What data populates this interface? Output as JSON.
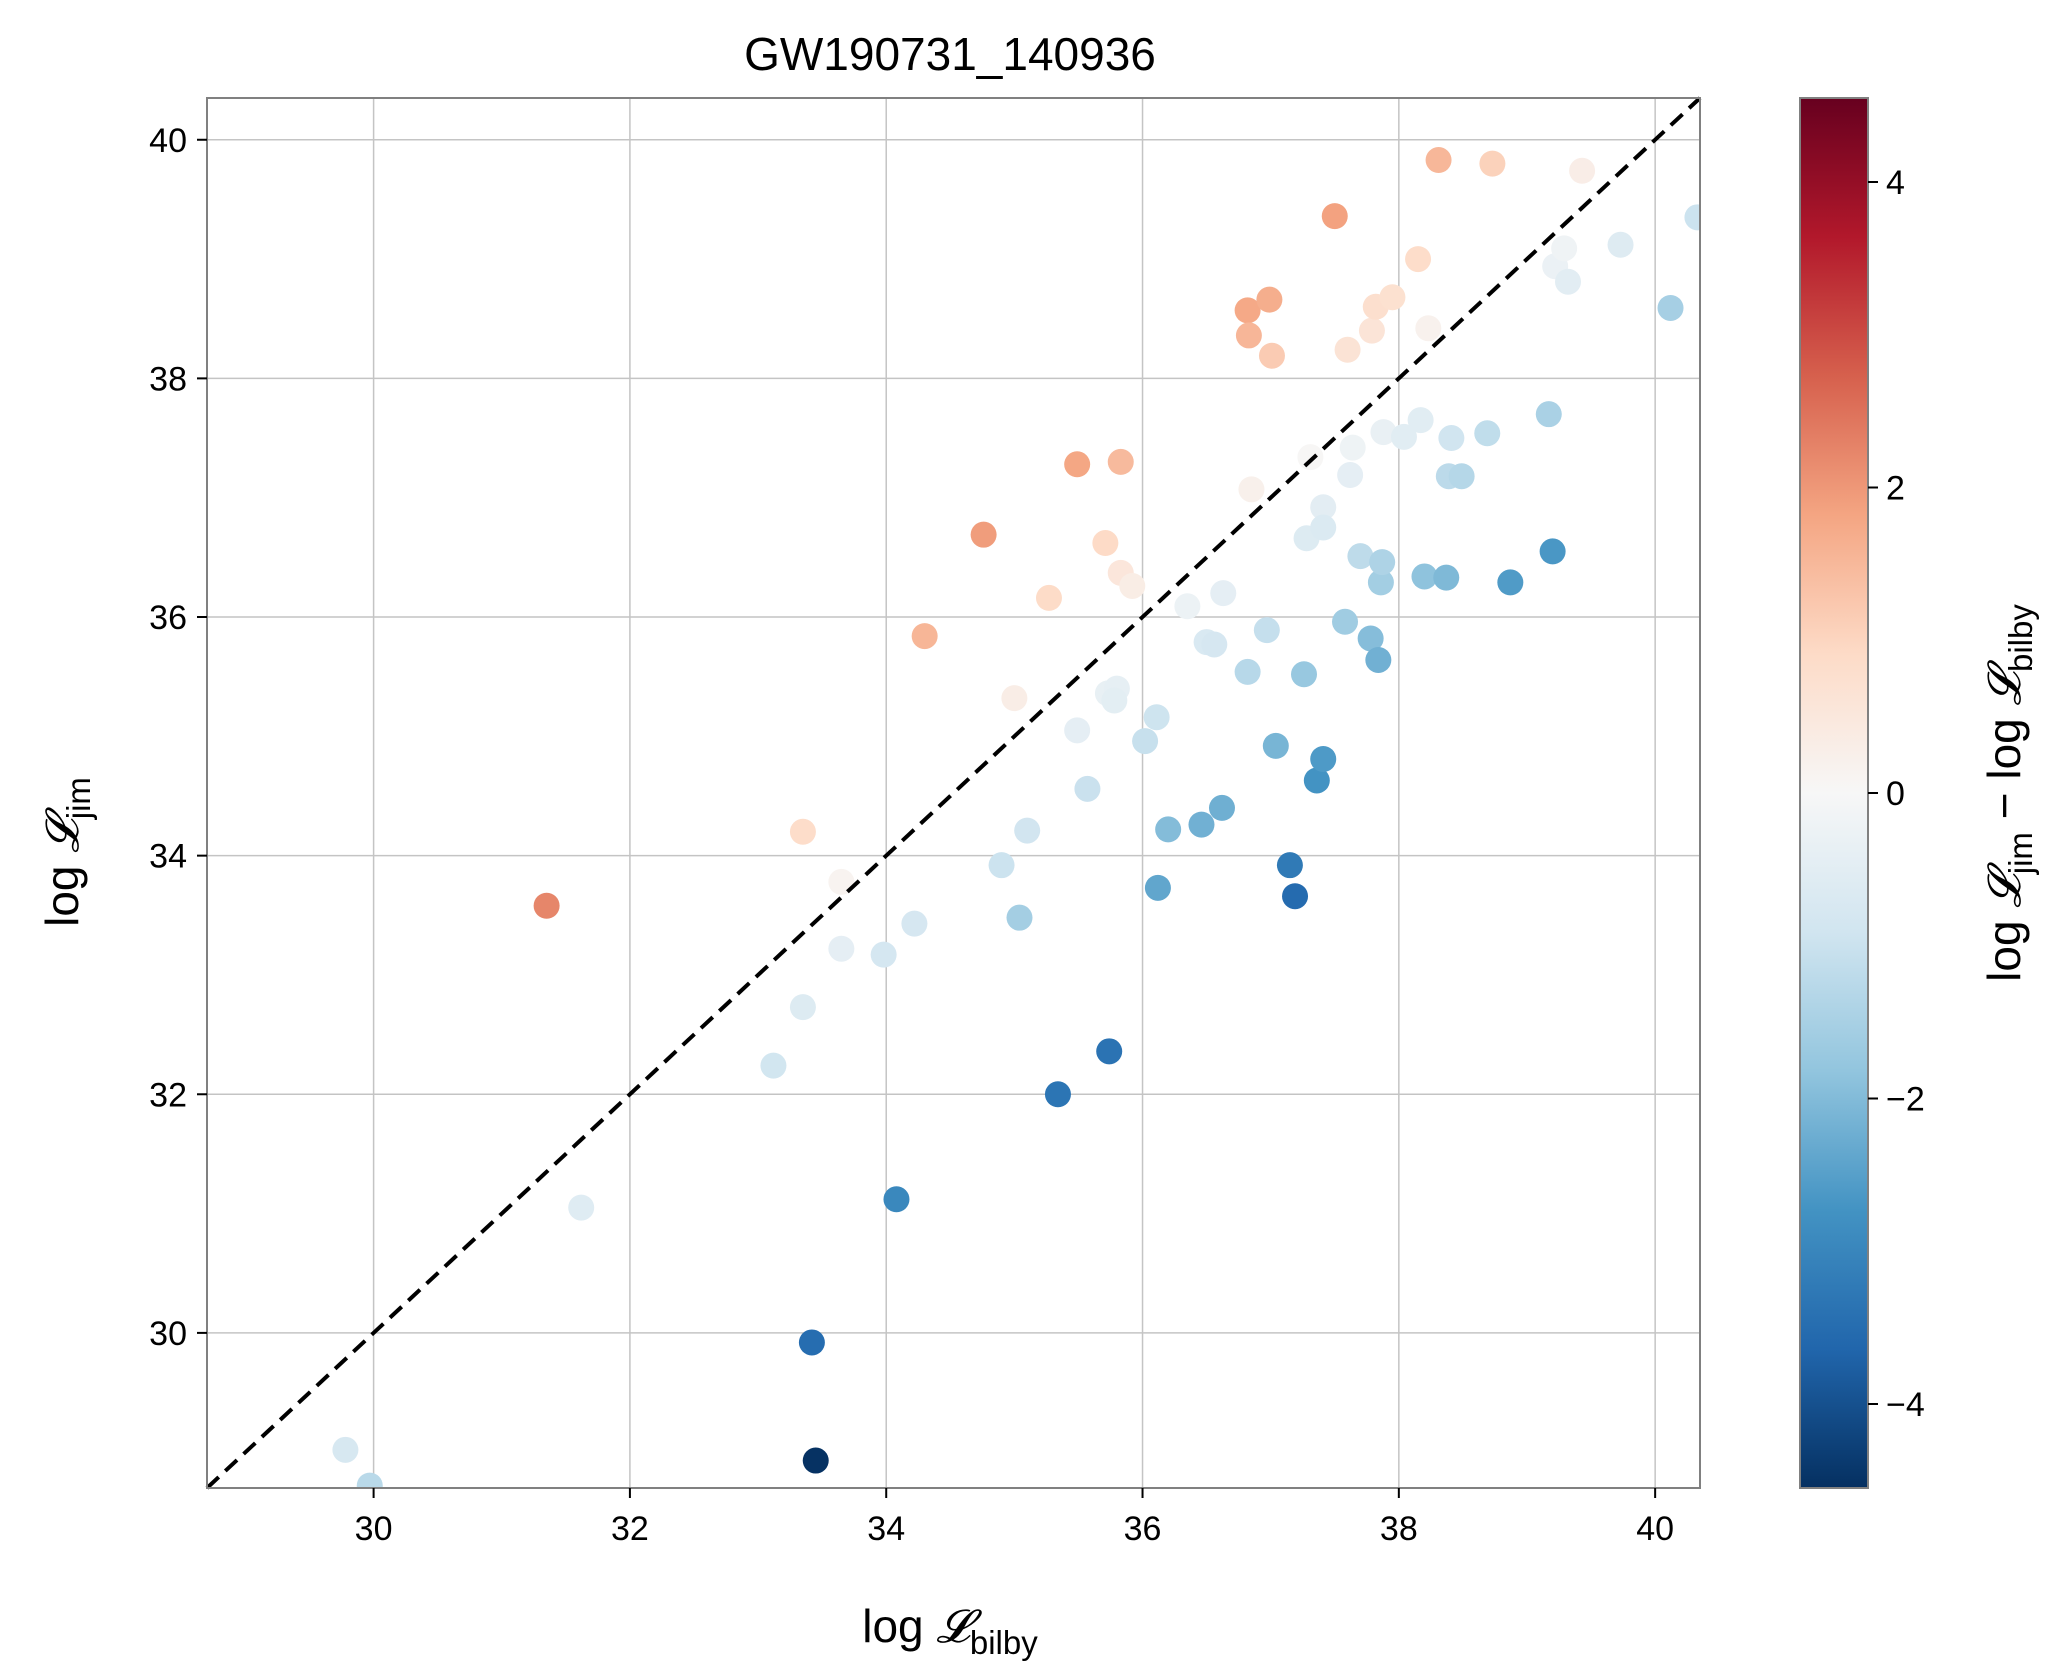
{
  "chart_data": {
    "type": "scatter",
    "title": "GW190731_140936",
    "xlabel": {
      "prefix": "log ",
      "symbol": "𝓛",
      "subscript": "bilby"
    },
    "ylabel": {
      "prefix": "log ",
      "symbol": "𝓛",
      "subscript": "jim"
    },
    "colorbar_label": {
      "a_prefix": "log ",
      "a_symbol": "𝓛",
      "a_subscript": "jim",
      "minus": " − ",
      "b_prefix": "log ",
      "b_symbol": "𝓛",
      "b_subscript": "bilby"
    },
    "xlim": [
      28.7,
      40.35
    ],
    "ylim": [
      28.7,
      40.35
    ],
    "xticks": [
      30,
      32,
      34,
      36,
      38,
      40
    ],
    "yticks": [
      30,
      32,
      34,
      36,
      38,
      40
    ],
    "xtick_labels": [
      "30",
      "32",
      "34",
      "36",
      "38",
      "40"
    ],
    "ytick_labels": [
      "30",
      "32",
      "34",
      "36",
      "38",
      "40"
    ],
    "grid": true,
    "colormap": "RdBu_r",
    "colorbar_range": [
      -4.55,
      4.55
    ],
    "colorbar_ticks": [
      -4,
      -2,
      0,
      2,
      4
    ],
    "colorbar_tick_labels": [
      "−4",
      "−2",
      "0",
      "2",
      "4"
    ],
    "reference_line": {
      "style": "dashed",
      "color": "#000000",
      "from": [
        28.7,
        28.7
      ],
      "to": [
        40.35,
        40.35
      ]
    },
    "points": [
      {
        "x": 29.78,
        "y": 29.02
      },
      {
        "x": 29.97,
        "y": 28.72
      },
      {
        "x": 31.62,
        "y": 31.05
      },
      {
        "x": 31.35,
        "y": 33.58
      },
      {
        "x": 33.12,
        "y": 32.24
      },
      {
        "x": 33.35,
        "y": 32.73
      },
      {
        "x": 33.42,
        "y": 29.92
      },
      {
        "x": 33.45,
        "y": 28.93
      },
      {
        "x": 33.35,
        "y": 34.2
      },
      {
        "x": 33.65,
        "y": 33.22
      },
      {
        "x": 33.65,
        "y": 33.78
      },
      {
        "x": 33.98,
        "y": 33.17
      },
      {
        "x": 34.08,
        "y": 31.12
      },
      {
        "x": 34.22,
        "y": 33.43
      },
      {
        "x": 34.3,
        "y": 35.84
      },
      {
        "x": 34.76,
        "y": 36.69
      },
      {
        "x": 34.9,
        "y": 33.92
      },
      {
        "x": 35.04,
        "y": 33.48
      },
      {
        "x": 35.0,
        "y": 35.32
      },
      {
        "x": 35.1,
        "y": 34.21
      },
      {
        "x": 35.27,
        "y": 36.16
      },
      {
        "x": 35.34,
        "y": 32.0
      },
      {
        "x": 35.49,
        "y": 35.05
      },
      {
        "x": 35.49,
        "y": 37.28
      },
      {
        "x": 35.57,
        "y": 34.56
      },
      {
        "x": 35.71,
        "y": 36.62
      },
      {
        "x": 35.74,
        "y": 32.36
      },
      {
        "x": 35.73,
        "y": 35.36
      },
      {
        "x": 35.8,
        "y": 35.4
      },
      {
        "x": 35.78,
        "y": 35.3
      },
      {
        "x": 35.83,
        "y": 36.37
      },
      {
        "x": 35.83,
        "y": 37.3
      },
      {
        "x": 35.92,
        "y": 36.26
      },
      {
        "x": 36.02,
        "y": 34.96
      },
      {
        "x": 36.11,
        "y": 35.16
      },
      {
        "x": 36.12,
        "y": 33.73
      },
      {
        "x": 36.2,
        "y": 34.22
      },
      {
        "x": 36.35,
        "y": 36.09
      },
      {
        "x": 36.46,
        "y": 34.26
      },
      {
        "x": 36.5,
        "y": 35.79
      },
      {
        "x": 36.56,
        "y": 35.77
      },
      {
        "x": 36.62,
        "y": 34.4
      },
      {
        "x": 36.63,
        "y": 36.2
      },
      {
        "x": 36.82,
        "y": 35.54
      },
      {
        "x": 36.82,
        "y": 38.57
      },
      {
        "x": 36.83,
        "y": 38.36
      },
      {
        "x": 36.85,
        "y": 37.07
      },
      {
        "x": 36.97,
        "y": 35.89
      },
      {
        "x": 36.99,
        "y": 38.66
      },
      {
        "x": 37.01,
        "y": 38.19
      },
      {
        "x": 37.04,
        "y": 34.92
      },
      {
        "x": 37.15,
        "y": 33.92
      },
      {
        "x": 37.19,
        "y": 33.66
      },
      {
        "x": 37.26,
        "y": 35.52
      },
      {
        "x": 37.28,
        "y": 36.66
      },
      {
        "x": 37.31,
        "y": 37.34
      },
      {
        "x": 37.36,
        "y": 34.63
      },
      {
        "x": 37.41,
        "y": 34.81
      },
      {
        "x": 37.41,
        "y": 36.92
      },
      {
        "x": 37.41,
        "y": 36.75
      },
      {
        "x": 37.5,
        "y": 39.36
      },
      {
        "x": 37.58,
        "y": 35.96
      },
      {
        "x": 37.6,
        "y": 38.24
      },
      {
        "x": 37.62,
        "y": 37.19
      },
      {
        "x": 37.64,
        "y": 37.42
      },
      {
        "x": 37.7,
        "y": 36.51
      },
      {
        "x": 37.78,
        "y": 35.82
      },
      {
        "x": 37.79,
        "y": 38.4
      },
      {
        "x": 37.82,
        "y": 38.6
      },
      {
        "x": 37.84,
        "y": 35.64
      },
      {
        "x": 37.86,
        "y": 36.29
      },
      {
        "x": 37.87,
        "y": 36.46
      },
      {
        "x": 37.88,
        "y": 37.55
      },
      {
        "x": 37.95,
        "y": 38.68
      },
      {
        "x": 38.04,
        "y": 37.51
      },
      {
        "x": 38.15,
        "y": 39.0
      },
      {
        "x": 38.17,
        "y": 37.65
      },
      {
        "x": 38.2,
        "y": 36.34
      },
      {
        "x": 38.23,
        "y": 38.42
      },
      {
        "x": 38.31,
        "y": 39.83
      },
      {
        "x": 38.37,
        "y": 36.33
      },
      {
        "x": 38.39,
        "y": 37.18
      },
      {
        "x": 38.41,
        "y": 37.5
      },
      {
        "x": 38.49,
        "y": 37.18
      },
      {
        "x": 38.69,
        "y": 37.54
      },
      {
        "x": 38.73,
        "y": 39.8
      },
      {
        "x": 38.87,
        "y": 36.29
      },
      {
        "x": 39.17,
        "y": 37.7
      },
      {
        "x": 39.2,
        "y": 36.55
      },
      {
        "x": 39.22,
        "y": 38.94
      },
      {
        "x": 39.29,
        "y": 39.09
      },
      {
        "x": 39.32,
        "y": 38.81
      },
      {
        "x": 39.43,
        "y": 39.74
      },
      {
        "x": 39.73,
        "y": 39.12
      },
      {
        "x": 40.12,
        "y": 38.59
      },
      {
        "x": 40.33,
        "y": 39.35
      }
    ]
  }
}
